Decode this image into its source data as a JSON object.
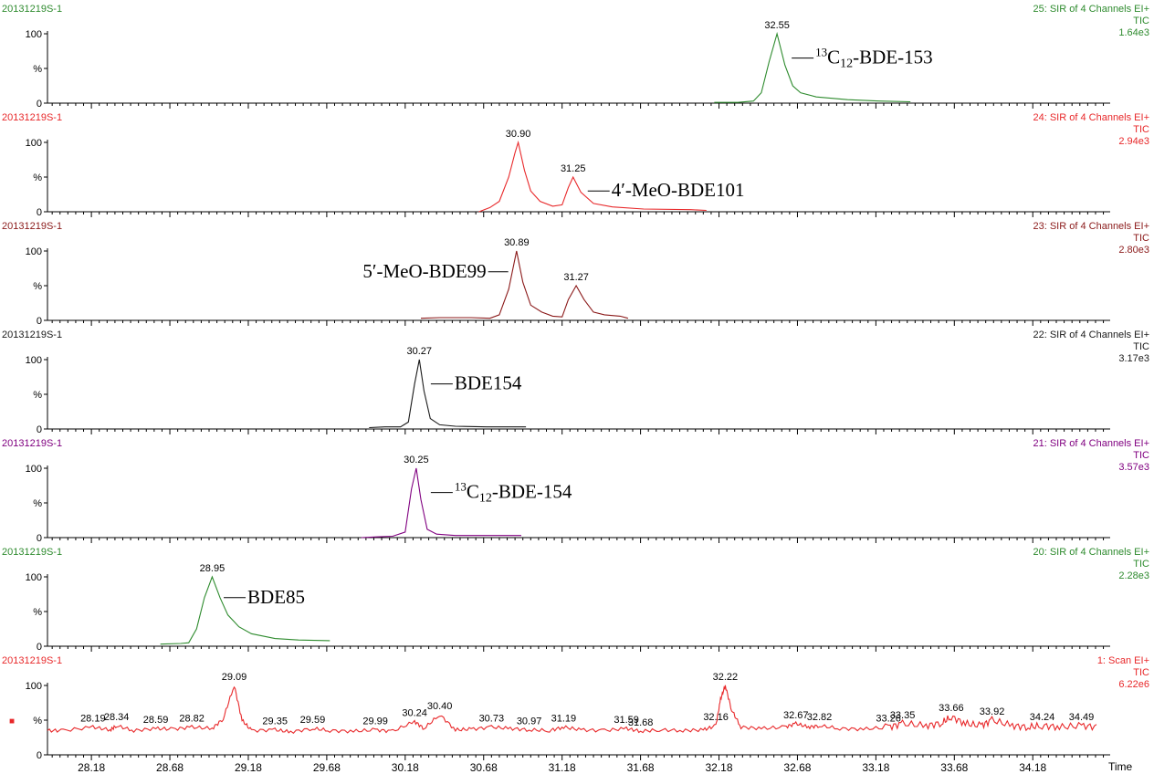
{
  "chart_data": {
    "type": "line",
    "xlabel": "Time",
    "x_ticks": [
      "28.18",
      "28.68",
      "29.18",
      "29.68",
      "30.18",
      "30.68",
      "31.18",
      "31.68",
      "32.18",
      "32.68",
      "33.18",
      "33.68",
      "34.18"
    ],
    "xlim": [
      27.9,
      34.65
    ],
    "y_ticks": [
      "100",
      "%",
      "0"
    ],
    "panels": [
      {
        "sample": "20131219S-1",
        "channel": "25: SIR of 4 Channels EI+",
        "tic": "TIC",
        "intensity": "1.64e3",
        "color": "#2e8b2e",
        "peak_labels": [
          {
            "x": 32.55,
            "text": "32.55"
          }
        ],
        "compound": {
          "sup": "13",
          "prefix": "C",
          "sub": "12",
          "name": "-BDE-153"
        },
        "compound_anchor": {
          "x": 32.62,
          "y": 65
        },
        "series": {
          "x": [
            32.15,
            32.3,
            32.4,
            32.45,
            32.5,
            32.55,
            32.6,
            32.65,
            32.7,
            32.8,
            32.9,
            33.0,
            33.2,
            33.4
          ],
          "y": [
            1,
            1,
            3,
            15,
            60,
            100,
            55,
            25,
            15,
            9,
            7,
            5,
            3,
            2
          ]
        }
      },
      {
        "sample": "20131219S-1",
        "channel": "24: SIR of 4 Channels EI+",
        "tic": "TIC",
        "intensity": "2.94e3",
        "color": "#e8282a",
        "peak_labels": [
          {
            "x": 30.9,
            "text": "30.90"
          },
          {
            "x": 31.25,
            "text": "31.25"
          }
        ],
        "compound": {
          "sup": "",
          "prefix": "",
          "sub": "",
          "name": "4′-MeO-BDE101"
        },
        "compound_anchor": {
          "x": 31.32,
          "y": 30
        },
        "series": {
          "x": [
            30.65,
            30.72,
            30.78,
            30.84,
            30.88,
            30.9,
            30.94,
            30.98,
            31.04,
            31.12,
            31.18,
            31.22,
            31.25,
            31.3,
            31.38,
            31.5,
            31.7,
            32.0,
            32.1
          ],
          "y": [
            0,
            6,
            15,
            50,
            85,
            100,
            60,
            30,
            15,
            8,
            10,
            35,
            50,
            28,
            12,
            7,
            4,
            3,
            2
          ]
        }
      },
      {
        "sample": "20131219S-1",
        "channel": "23: SIR of 4 Channels EI+",
        "tic": "TIC",
        "intensity": "2.80e3",
        "color": "#8b1a1a",
        "peak_labels": [
          {
            "x": 30.89,
            "text": "30.89"
          },
          {
            "x": 31.27,
            "text": "31.27"
          }
        ],
        "compound": {
          "sup": "",
          "prefix": "",
          "sub": "",
          "name": "5′-MeO-BDE99"
        },
        "compound_anchor": {
          "x": 30.86,
          "y": 70
        },
        "series": {
          "x": [
            30.28,
            30.4,
            30.6,
            30.72,
            30.78,
            30.84,
            30.89,
            30.93,
            30.98,
            31.05,
            31.12,
            31.18,
            31.22,
            31.27,
            31.32,
            31.38,
            31.45,
            31.55,
            31.6
          ],
          "y": [
            3,
            4,
            4,
            3,
            8,
            45,
            100,
            55,
            22,
            12,
            6,
            5,
            30,
            50,
            30,
            12,
            8,
            6,
            3
          ]
        }
      },
      {
        "sample": "20131219S-1",
        "channel": "22: SIR of 4 Channels EI+",
        "tic": "TIC",
        "intensity": "3.17e3",
        "color": "#1a1a1a",
        "peak_labels": [
          {
            "x": 30.27,
            "text": "30.27"
          }
        ],
        "compound": {
          "sup": "",
          "prefix": "",
          "sub": "",
          "name": "BDE154"
        },
        "compound_anchor": {
          "x": 30.32,
          "y": 65
        },
        "series": {
          "x": [
            29.95,
            30.05,
            30.15,
            30.2,
            30.24,
            30.27,
            30.3,
            30.34,
            30.4,
            30.5,
            30.7,
            30.95
          ],
          "y": [
            2,
            3,
            3,
            10,
            65,
            100,
            55,
            15,
            6,
            4,
            3,
            3
          ]
        }
      },
      {
        "sample": "20131219S-1",
        "channel": "21: SIR of 4 Channels EI+",
        "tic": "TIC",
        "intensity": "3.57e3",
        "color": "#800080",
        "peak_labels": [
          {
            "x": 30.25,
            "text": "30.25"
          }
        ],
        "compound": {
          "sup": "13",
          "prefix": "C",
          "sub": "12",
          "name": "-BDE-154"
        },
        "compound_anchor": {
          "x": 30.32,
          "y": 65
        },
        "series": {
          "x": [
            29.9,
            30.0,
            30.1,
            30.18,
            30.22,
            30.25,
            30.28,
            30.32,
            30.38,
            30.5,
            30.7,
            30.92
          ],
          "y": [
            0,
            1,
            2,
            8,
            70,
            100,
            55,
            12,
            5,
            3,
            3,
            3
          ]
        }
      },
      {
        "sample": "20131219S-1",
        "channel": "20: SIR of 4 Channels EI+",
        "tic": "TIC",
        "intensity": "2.28e3",
        "color": "#2e8b2e",
        "peak_labels": [
          {
            "x": 28.95,
            "text": "28.95"
          }
        ],
        "compound": {
          "sup": "",
          "prefix": "",
          "sub": "",
          "name": "BDE85"
        },
        "compound_anchor": {
          "x": 29.0,
          "y": 70
        },
        "series": {
          "x": [
            28.62,
            28.75,
            28.8,
            28.85,
            28.9,
            28.95,
            29.0,
            29.05,
            29.12,
            29.2,
            29.35,
            29.5,
            29.7
          ],
          "y": [
            3,
            4,
            5,
            25,
            70,
            100,
            70,
            45,
            28,
            18,
            11,
            9,
            8
          ]
        }
      },
      {
        "sample": "20131219S-1",
        "channel": "1: Scan EI+",
        "tic": "TIC",
        "intensity": "6.22e6",
        "color": "#e8282a",
        "marker": "■",
        "peak_labels": [
          {
            "x": 28.19,
            "text": "28.19"
          },
          {
            "x": 28.34,
            "text": "28.34"
          },
          {
            "x": 28.59,
            "text": "28.59"
          },
          {
            "x": 28.82,
            "text": "28.82"
          },
          {
            "x": 29.09,
            "text": "29.09"
          },
          {
            "x": 29.35,
            "text": "29.35"
          },
          {
            "x": 29.59,
            "text": "29.59"
          },
          {
            "x": 29.99,
            "text": "29.99"
          },
          {
            "x": 30.24,
            "text": "30.24"
          },
          {
            "x": 30.4,
            "text": "30.40"
          },
          {
            "x": 30.73,
            "text": "30.73"
          },
          {
            "x": 30.97,
            "text": "30.97"
          },
          {
            "x": 31.19,
            "text": "31.19"
          },
          {
            "x": 31.59,
            "text": "31.59"
          },
          {
            "x": 31.68,
            "text": "31.68"
          },
          {
            "x": 32.16,
            "text": "32.16"
          },
          {
            "x": 32.22,
            "text": "32.22"
          },
          {
            "x": 32.67,
            "text": "32.67"
          },
          {
            "x": 32.82,
            "text": "32.82"
          },
          {
            "x": 33.26,
            "text": "33.26"
          },
          {
            "x": 33.35,
            "text": "33.35"
          },
          {
            "x": 33.66,
            "text": "33.66"
          },
          {
            "x": 33.92,
            "text": "33.92"
          },
          {
            "x": 34.24,
            "text": "34.24"
          },
          {
            "x": 34.49,
            "text": "34.49"
          }
        ],
        "series": {
          "x": [
            27.9,
            28.0,
            28.19,
            28.3,
            28.34,
            28.45,
            28.59,
            28.7,
            28.82,
            28.95,
            29.02,
            29.09,
            29.14,
            29.2,
            29.35,
            29.45,
            29.59,
            29.7,
            29.85,
            29.99,
            30.1,
            30.24,
            30.3,
            30.4,
            30.5,
            30.6,
            30.73,
            30.85,
            30.97,
            31.1,
            31.19,
            31.3,
            31.45,
            31.59,
            31.68,
            31.8,
            31.95,
            32.08,
            32.16,
            32.19,
            32.22,
            32.26,
            32.32,
            32.45,
            32.6,
            32.67,
            32.75,
            32.82,
            32.95,
            33.1,
            33.26,
            33.35,
            33.5,
            33.6,
            33.66,
            33.75,
            33.85,
            33.92,
            34.05,
            34.15,
            34.24,
            34.35,
            34.49,
            34.6
          ],
          "y": [
            35,
            35,
            40,
            36,
            42,
            35,
            38,
            37,
            40,
            38,
            52,
            100,
            50,
            35,
            36,
            33,
            38,
            35,
            34,
            36,
            34,
            48,
            38,
            58,
            36,
            37,
            40,
            38,
            36,
            35,
            40,
            36,
            35,
            38,
            34,
            36,
            35,
            36,
            42,
            80,
            100,
            65,
            40,
            38,
            40,
            45,
            40,
            42,
            38,
            37,
            40,
            45,
            42,
            46,
            55,
            45,
            42,
            50,
            42,
            40,
            42,
            40,
            42,
            40
          ]
        }
      }
    ]
  }
}
